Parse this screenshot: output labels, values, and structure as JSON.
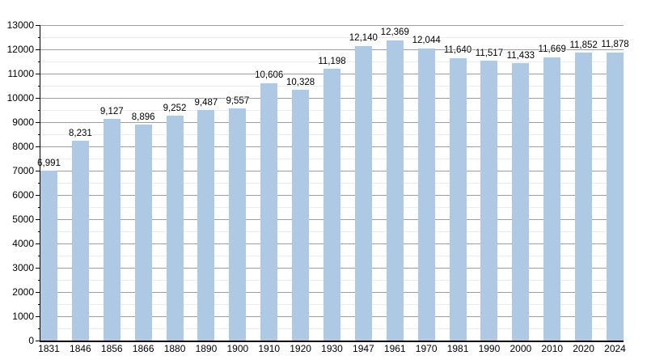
{
  "chart_data": {
    "type": "bar",
    "title": "",
    "xlabel": "",
    "ylabel": "",
    "categories": [
      "1831",
      "1846",
      "1856",
      "1866",
      "1880",
      "1890",
      "1900",
      "1910",
      "1920",
      "1930",
      "1947",
      "1961",
      "1970",
      "1981",
      "1990",
      "2000",
      "2010",
      "2020",
      "2024"
    ],
    "values": [
      6991,
      8231,
      9127,
      8896,
      9252,
      9487,
      9557,
      10606,
      10328,
      11198,
      12140,
      12369,
      12044,
      11640,
      11517,
      11433,
      11669,
      11852,
      11878
    ],
    "value_labels": [
      "6,991",
      "8,231",
      "9,127",
      "8,896",
      "9,252",
      "9,487",
      "9,557",
      "10,606",
      "10,328",
      "11,198",
      "12,140",
      "12,369",
      "12,044",
      "11,640",
      "11,517",
      "11,433",
      "11,669",
      "11,852",
      "11,878"
    ],
    "ylim": [
      0,
      13000
    ],
    "y_major_step": 1000,
    "y_minor_step": 500,
    "y_tick_labels": [
      "0",
      "1000",
      "2000",
      "3000",
      "4000",
      "5000",
      "6000",
      "7000",
      "8000",
      "9000",
      "10000",
      "11000",
      "12000",
      "13000"
    ],
    "grid": true,
    "legend_position": "none",
    "colors": {
      "bar": "#aec9e3",
      "grid_major": "#9e9e9e",
      "grid_minor": "#ebebeb",
      "axis": "#000000",
      "text": "#000000",
      "background": "#ffffff"
    }
  }
}
